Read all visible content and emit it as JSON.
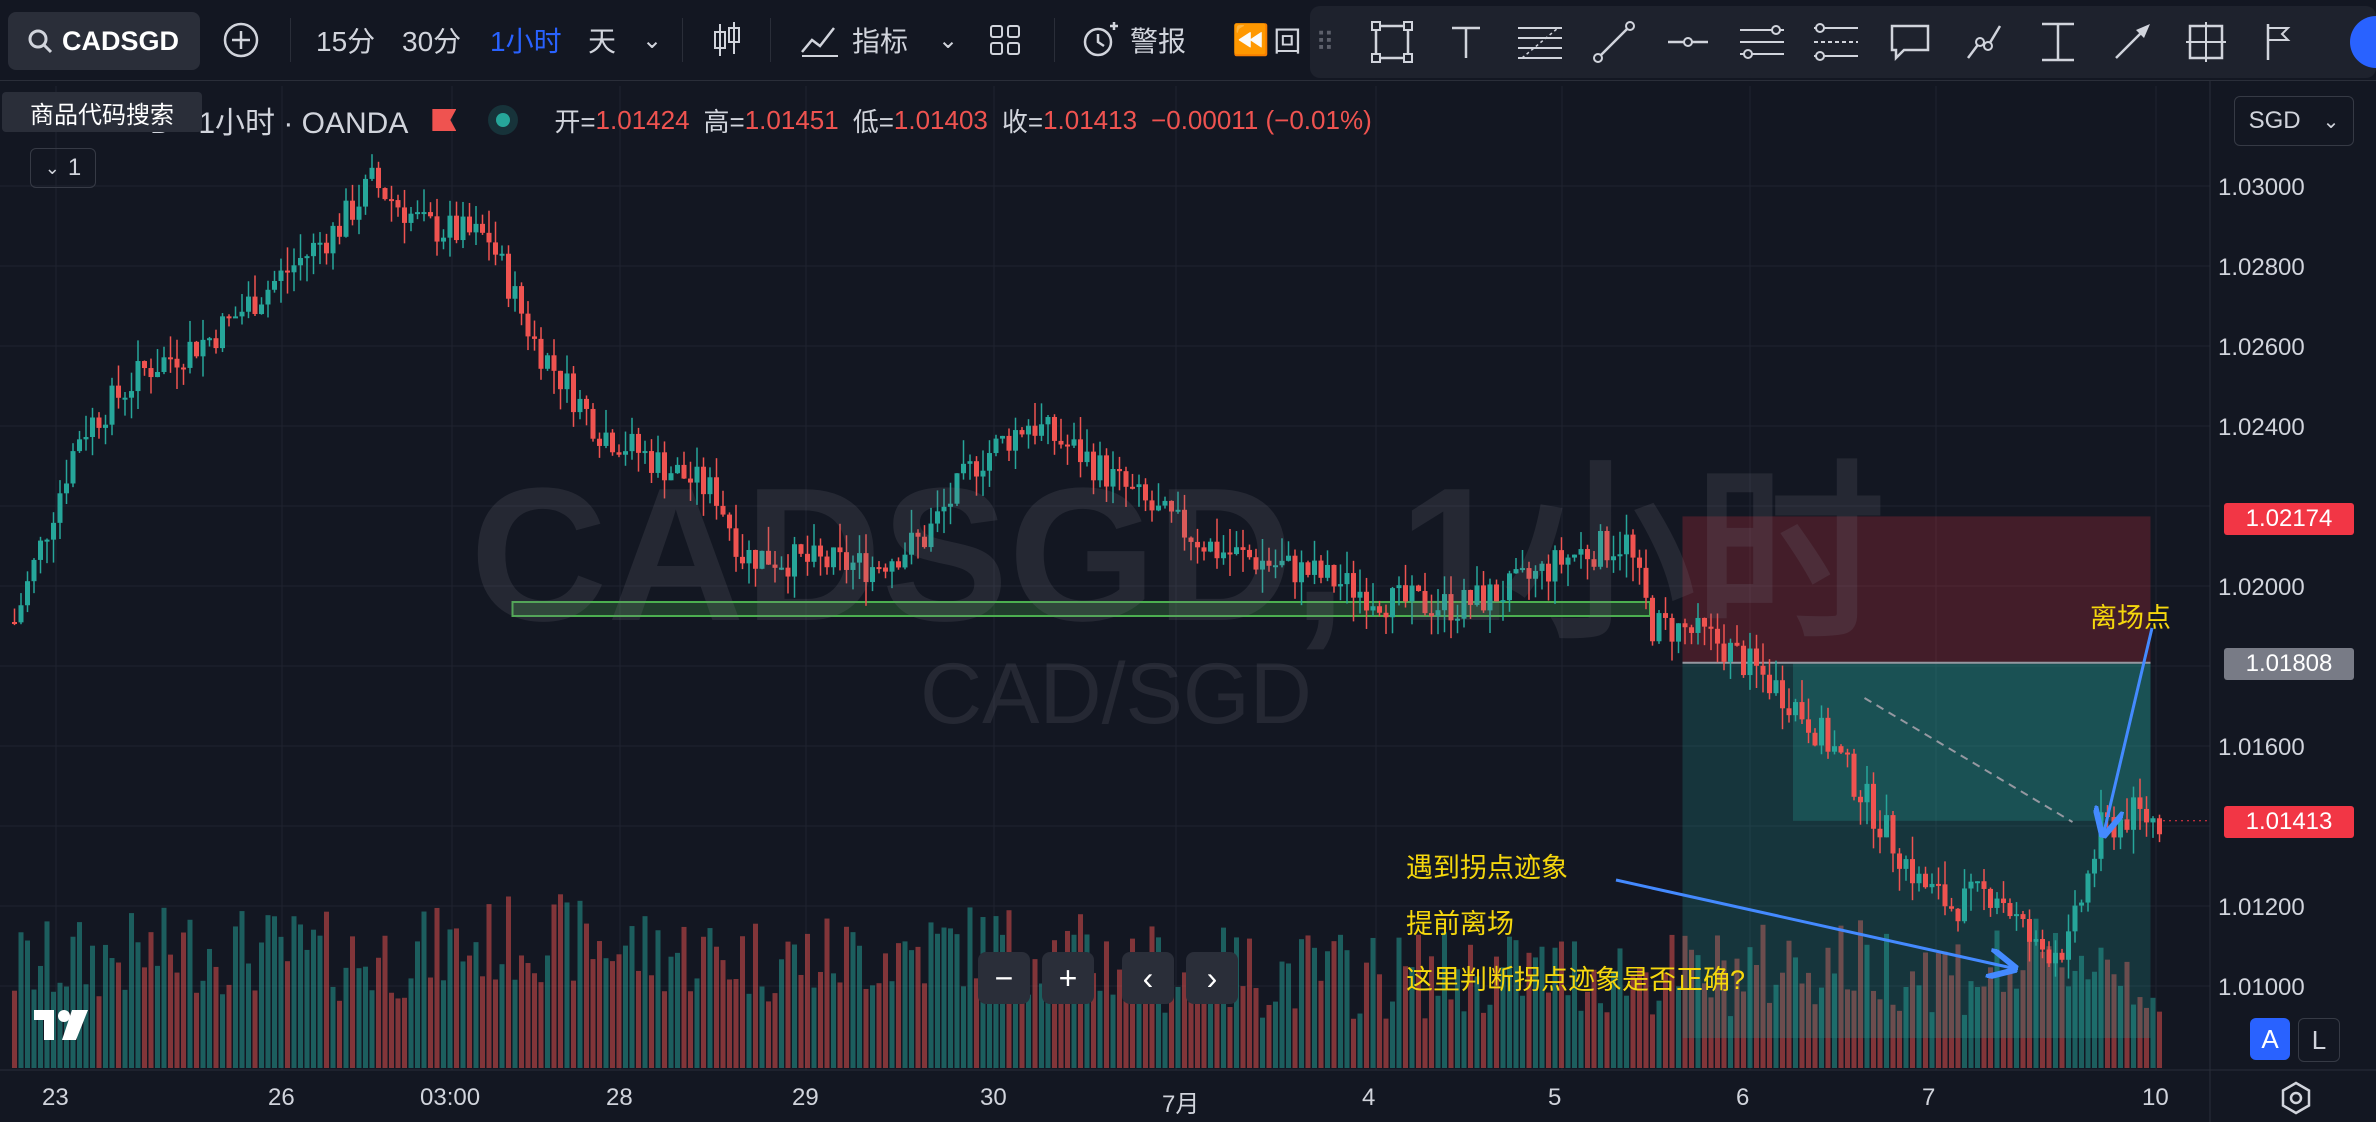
{
  "toolbar": {
    "symbol": "CADSGD",
    "intervals": [
      "15分",
      "30分",
      "1小时",
      "天"
    ],
    "active_interval": "1小时",
    "indicators_label": "指标",
    "alert_label": "警报",
    "replay_label": "回"
  },
  "tooltip": "商品代码搜索",
  "legend": {
    "title": "D · 1小时 · OANDA",
    "open_label": "开=",
    "open": "1.01424",
    "high_label": "高=",
    "high": "1.01451",
    "low_label": "低=",
    "low": "1.01403",
    "close_label": "收=",
    "close": "1.01413",
    "change": "−0.00011 (−0.01%)"
  },
  "collapse_count": "1",
  "currency": "SGD",
  "watermark": {
    "main": "CADSGD, 1小时",
    "sub": "CAD/SGD"
  },
  "price_axis": [
    "1.03000",
    "1.02800",
    "1.02600",
    "1.02400",
    "1.02000",
    "1.01600",
    "1.01200",
    "1.01000"
  ],
  "price_tags": {
    "stop": "1.02174",
    "entry": "1.01808",
    "last": "1.01413"
  },
  "time_axis": [
    "23",
    "26",
    "03:00",
    "28",
    "29",
    "30",
    "7月",
    "4",
    "5",
    "6",
    "7",
    "10"
  ],
  "annotations": {
    "exit": "离场点",
    "line1": "遇到拐点迹象",
    "line2": "提前离场",
    "line3": "这里判断拐点迹象是否正确?"
  },
  "nav": {
    "minus": "−",
    "plus": "+",
    "left": "‹",
    "right": "›"
  },
  "scale_buttons": {
    "auto": "A",
    "log": "L"
  },
  "colors": {
    "up": "#26a69a",
    "down": "#ef5350",
    "background": "#131722",
    "accent": "#2962ff",
    "note": "#f5d70d"
  },
  "chart_data": {
    "type": "candlestick",
    "symbol": "CADSGD",
    "interval": "1小时",
    "source": "OANDA",
    "ylim": [
      1.0085,
      1.0315
    ],
    "x_ticks": [
      "23",
      "26",
      "03:00",
      "28",
      "29",
      "30",
      "7月",
      "4",
      "5",
      "6",
      "7",
      "10"
    ],
    "close_path": [
      [
        0,
        1.0191
      ],
      [
        10,
        1.0238
      ],
      [
        20,
        1.0254
      ],
      [
        30,
        1.0262
      ],
      [
        40,
        1.0276
      ],
      [
        50,
        1.029
      ],
      [
        55,
        1.0301
      ],
      [
        63,
        1.029
      ],
      [
        73,
        1.0287
      ],
      [
        80,
        1.0261
      ],
      [
        90,
        1.0239
      ],
      [
        100,
        1.023
      ],
      [
        108,
        1.0223
      ],
      [
        112,
        1.0208
      ],
      [
        122,
        1.0206
      ],
      [
        132,
        1.0205
      ],
      [
        140,
        1.0212
      ],
      [
        148,
        1.0231
      ],
      [
        156,
        1.0241
      ],
      [
        165,
        1.0232
      ],
      [
        175,
        1.0219
      ],
      [
        185,
        1.0209
      ],
      [
        200,
        1.0203
      ],
      [
        212,
        1.0196
      ],
      [
        222,
        1.0195
      ],
      [
        230,
        1.0199
      ],
      [
        240,
        1.0208
      ],
      [
        248,
        1.0211
      ],
      [
        252,
        1.019
      ],
      [
        257,
        1.0189
      ],
      [
        262,
        1.0186
      ],
      [
        267,
        1.018
      ],
      [
        273,
        1.0172
      ],
      [
        280,
        1.0159
      ],
      [
        287,
        1.0141
      ],
      [
        293,
        1.0126
      ],
      [
        298,
        1.012
      ],
      [
        305,
        1.0124
      ],
      [
        311,
        1.0109
      ],
      [
        316,
        1.011
      ],
      [
        321,
        1.0139
      ],
      [
        326,
        1.0143
      ],
      [
        330,
        1.0141
      ]
    ],
    "volume_profile": [
      [
        0,
        0.45
      ],
      [
        30,
        0.7
      ],
      [
        55,
        0.55
      ],
      [
        80,
        0.85
      ],
      [
        100,
        0.65
      ],
      [
        120,
        0.55
      ],
      [
        150,
        0.75
      ],
      [
        180,
        0.4
      ],
      [
        210,
        0.35
      ],
      [
        240,
        0.4
      ],
      [
        260,
        0.35
      ],
      [
        280,
        0.55
      ],
      [
        300,
        0.4
      ],
      [
        321,
        0.6
      ],
      [
        330,
        0.2
      ]
    ],
    "support_zone": [
      1.01935,
      1.0196
    ],
    "position": {
      "type": "short",
      "entry": 1.01808,
      "stop": 1.02174,
      "exit": 1.01413
    }
  }
}
